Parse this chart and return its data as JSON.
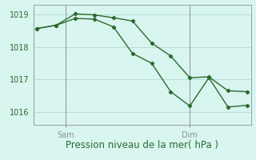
{
  "line1_x": [
    0,
    1,
    2,
    3,
    4,
    5,
    6,
    7,
    8,
    9,
    10,
    11
  ],
  "line1_y": [
    1018.57,
    1018.67,
    1018.88,
    1018.86,
    1018.62,
    1017.8,
    1017.5,
    1016.62,
    1016.18,
    1017.05,
    1016.15,
    1016.2
  ],
  "line2_x": [
    0,
    1,
    2,
    3,
    4,
    5,
    6,
    7,
    8,
    9,
    10,
    11
  ],
  "line2_y": [
    1018.57,
    1018.67,
    1019.02,
    1018.99,
    1018.9,
    1018.8,
    1018.12,
    1017.72,
    1017.05,
    1017.08,
    1016.65,
    1016.62
  ],
  "color": "#2d6a2d",
  "bg_color": "#d8f5f0",
  "grid_color": "#b8ddd8",
  "vline_color": "#909090",
  "ylim": [
    1015.6,
    1019.3
  ],
  "yticks": [
    1016,
    1017,
    1018,
    1019
  ],
  "xlim": [
    -0.2,
    11.2
  ],
  "sam_x": 1.5,
  "dim_x": 8.0,
  "xlabel": "Pression niveau de la mer( hPa )",
  "xlabel_fontsize": 8.5,
  "tick_fontsize": 7
}
